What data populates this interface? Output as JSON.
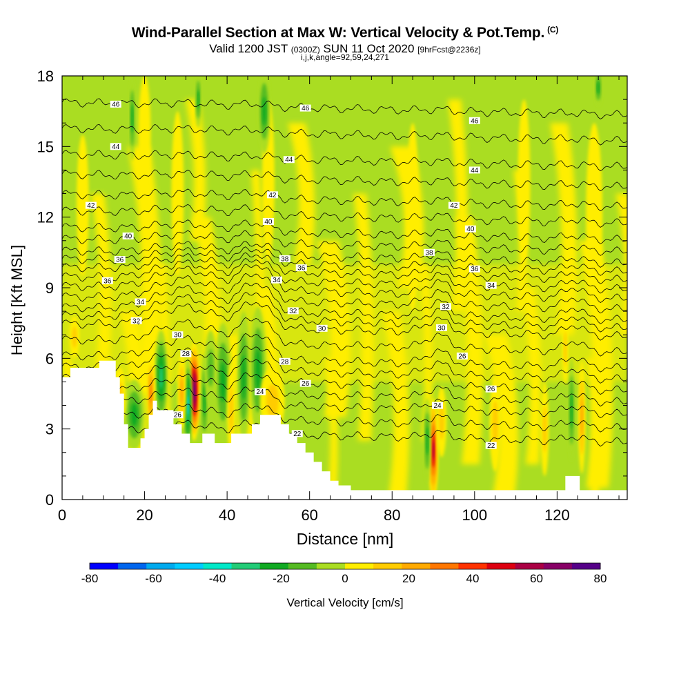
{
  "header": {
    "title": "Wind-Parallel Section at Max W: Vertical Velocity & Pot.Temp.",
    "title_tag": "(C)",
    "subtitle_main_1": "Valid 1200 JST",
    "subtitle_small_1": "(0300Z)",
    "subtitle_main_2": "SUN 11 Oct 2020",
    "subtitle_small_2": "[9hrFcst@2236z]",
    "subtitle2": "i,j,k,angle=92,59,24,271"
  },
  "chart_data": {
    "type": "heatmap",
    "xlabel": "Distance [nm]",
    "ylabel": "Height [Kft MSL]",
    "xlim": [
      0,
      137
    ],
    "ylim": [
      0,
      18
    ],
    "xticks": [
      0,
      20,
      40,
      60,
      80,
      100,
      120
    ],
    "yticks": [
      0,
      3,
      6,
      9,
      12,
      15,
      18
    ],
    "colorbar": {
      "label": "Vertical Velocity [cm/s]",
      "range": [
        -80,
        80
      ],
      "tick_labels": [
        "-80",
        "-60",
        "-40",
        "-20",
        "0",
        "20",
        "40",
        "60",
        "80"
      ],
      "colors": [
        "#0000ff",
        "#0066ee",
        "#00aaee",
        "#00ccff",
        "#00e8c8",
        "#22cc77",
        "#11aa22",
        "#55bb22",
        "#aadd22",
        "#ffee00",
        "#ffcc00",
        "#ffaa00",
        "#ff7700",
        "#ff3300",
        "#dd0011",
        "#aa0044",
        "#880066",
        "#550088"
      ]
    },
    "background_colors": {
      "light_updraft": "#ffee00",
      "light_downdraft": "#aadd22"
    },
    "terrain": [
      [
        0,
        5.2
      ],
      [
        2,
        5.6
      ],
      [
        7,
        5.6
      ],
      [
        9,
        5.9
      ],
      [
        12,
        5.9
      ],
      [
        13,
        5.2
      ],
      [
        14,
        4.5
      ],
      [
        15,
        3.2
      ],
      [
        16,
        2.2
      ],
      [
        18,
        2.2
      ],
      [
        19,
        2.6
      ],
      [
        20,
        3.0
      ],
      [
        21,
        3.6
      ],
      [
        22,
        4.2
      ],
      [
        23,
        3.8
      ],
      [
        25,
        3.8
      ],
      [
        27,
        3.2
      ],
      [
        29,
        2.8
      ],
      [
        30,
        2.8
      ],
      [
        31,
        2.4
      ],
      [
        33,
        2.4
      ],
      [
        34,
        2.8
      ],
      [
        36,
        2.8
      ],
      [
        37,
        2.4
      ],
      [
        40,
        2.4
      ],
      [
        41,
        2.8
      ],
      [
        44,
        2.8
      ],
      [
        46,
        3.2
      ],
      [
        48,
        3.6
      ],
      [
        51,
        3.6
      ],
      [
        53,
        3.2
      ],
      [
        55,
        2.8
      ],
      [
        57,
        2.4
      ],
      [
        59,
        2.0
      ],
      [
        61,
        1.6
      ],
      [
        63,
        1.2
      ],
      [
        65,
        0.8
      ],
      [
        67,
        0.6
      ],
      [
        70,
        0.4
      ],
      [
        75,
        0.4
      ],
      [
        80,
        0.4
      ],
      [
        90,
        0.4
      ],
      [
        100,
        0.4
      ],
      [
        120,
        0.4
      ],
      [
        121,
        0.4
      ],
      [
        122,
        1.0
      ],
      [
        125,
        1.0
      ],
      [
        125.5,
        0.4
      ],
      [
        137,
        0.4
      ]
    ],
    "velocity_cells": [
      {
        "x": 32,
        "y": 4.6,
        "rx": 1.4,
        "ry": 2.1,
        "w": 75
      },
      {
        "x": 30.5,
        "y": 4.0,
        "rx": 1.0,
        "ry": 2.0,
        "w": -45
      },
      {
        "x": 34.5,
        "y": 4.2,
        "rx": 0.9,
        "ry": 2.0,
        "w": -30
      },
      {
        "x": 29,
        "y": 4.6,
        "rx": 1.0,
        "ry": 1.6,
        "w": 25
      },
      {
        "x": 24,
        "y": 5.2,
        "rx": 1.6,
        "ry": 2.0,
        "w": -35
      },
      {
        "x": 21.5,
        "y": 4.5,
        "rx": 1.0,
        "ry": 1.6,
        "w": 35
      },
      {
        "x": 17.5,
        "y": 3.6,
        "rx": 2.5,
        "ry": 1.5,
        "w": -25
      },
      {
        "x": 14,
        "y": 4.4,
        "rx": 1.5,
        "ry": 1.2,
        "w": 15
      },
      {
        "x": 39,
        "y": 5.0,
        "rx": 2.0,
        "ry": 2.5,
        "w": -25
      },
      {
        "x": 41,
        "y": 3.8,
        "rx": 1.0,
        "ry": 2.0,
        "w": 15
      },
      {
        "x": 44,
        "y": 5.2,
        "rx": 1.6,
        "ry": 2.8,
        "w": -22
      },
      {
        "x": 47.5,
        "y": 5.5,
        "rx": 2.0,
        "ry": 2.7,
        "w": -28
      },
      {
        "x": 51,
        "y": 4.2,
        "rx": 3.0,
        "ry": 1.4,
        "w": 18
      },
      {
        "x": 36,
        "y": 5.6,
        "rx": 1.5,
        "ry": 1.6,
        "w": -20
      },
      {
        "x": 90,
        "y": 2.1,
        "rx": 1.2,
        "ry": 2.2,
        "w": 55
      },
      {
        "x": 88.5,
        "y": 2.5,
        "rx": 0.9,
        "ry": 1.8,
        "w": -22
      },
      {
        "x": 92,
        "y": 3.3,
        "rx": 1.2,
        "ry": 1.5,
        "w": 15
      },
      {
        "x": 123.5,
        "y": 3.8,
        "rx": 0.9,
        "ry": 2.2,
        "w": -30
      },
      {
        "x": 126,
        "y": 3.5,
        "rx": 0.9,
        "ry": 2.4,
        "w": 28
      },
      {
        "x": 122,
        "y": 6.4,
        "rx": 0.7,
        "ry": 1.5,
        "w": 18
      },
      {
        "x": 105,
        "y": 3.2,
        "rx": 1.4,
        "ry": 2.0,
        "w": 15
      },
      {
        "x": 117,
        "y": 3.0,
        "rx": 1.0,
        "ry": 2.0,
        "w": 15
      },
      {
        "x": 3,
        "y": 6.9,
        "rx": 1.2,
        "ry": 0.9,
        "w": 15
      },
      {
        "x": 5,
        "y": 12.5,
        "rx": 1.5,
        "ry": 3.0,
        "w": 10
      },
      {
        "x": 20,
        "y": 15.5,
        "rx": 1.5,
        "ry": 2.5,
        "w": 10
      },
      {
        "x": 28,
        "y": 13.0,
        "rx": 1.5,
        "ry": 3.5,
        "w": 10
      },
      {
        "x": 50,
        "y": 13.5,
        "rx": 1.5,
        "ry": 3.5,
        "w": 10
      },
      {
        "x": 85,
        "y": 12.0,
        "rx": 1.5,
        "ry": 4.0,
        "w": 10
      },
      {
        "x": 112,
        "y": 13.5,
        "rx": 1.5,
        "ry": 3.5,
        "w": 10
      },
      {
        "x": 129,
        "y": 12.0,
        "rx": 2.0,
        "ry": 4.0,
        "w": 10
      },
      {
        "x": 17,
        "y": 16.2,
        "rx": 0.8,
        "ry": 1.8,
        "w": -25
      },
      {
        "x": 33,
        "y": 17.0,
        "rx": 0.8,
        "ry": 1.2,
        "w": -25
      },
      {
        "x": 49,
        "y": 16.5,
        "rx": 1.5,
        "ry": 1.8,
        "w": -30
      },
      {
        "x": 130,
        "y": 17.5,
        "rx": 1.0,
        "ry": 0.8,
        "w": -25
      }
    ],
    "theta_levels": [
      {
        "value": 22,
        "y": 2.7,
        "label_x": 57,
        "bump": 0.4
      },
      {
        "value": 24,
        "y": 3.9,
        "label_x": 48,
        "bump": 0.6
      },
      {
        "value": 26,
        "y": 4.9,
        "label_x": 59,
        "bump": 0.8
      },
      {
        "value": 28,
        "y": 5.85,
        "label_x": 54,
        "bump": 0.9
      },
      {
        "value": 30,
        "y": 7.2,
        "label_x": 63,
        "bump": 0.9
      },
      {
        "value": 32,
        "y": 7.9,
        "label_x": 56,
        "bump": 1.0
      },
      {
        "value": 34,
        "y": 8.8,
        "label_x": 52,
        "bump": 0.9
      },
      {
        "value": 36,
        "y": 9.6,
        "label_x": 58,
        "bump": 0.6
      },
      {
        "value": 38,
        "y": 10.3,
        "label_x": 54,
        "bump": 0.4
      },
      {
        "value": 40,
        "y": 11.3,
        "label_x": 50,
        "bump": 0.3
      },
      {
        "value": 42,
        "y": 12.7,
        "label_x": 51,
        "bump": 0.2
      },
      {
        "value": 44,
        "y": 14.4,
        "label_x": 55,
        "bump": 0.1
      },
      {
        "value": 46,
        "y": 16.6,
        "label_x": 59,
        "bump": 0.1
      }
    ],
    "theta_labels_extra": [
      {
        "text": "46",
        "x": 13,
        "y": 16.8
      },
      {
        "text": "46",
        "x": 100,
        "y": 16.1
      },
      {
        "text": "44",
        "x": 13,
        "y": 15.0
      },
      {
        "text": "44",
        "x": 100,
        "y": 14.0
      },
      {
        "text": "42",
        "x": 7,
        "y": 12.5
      },
      {
        "text": "42",
        "x": 95,
        "y": 12.5
      },
      {
        "text": "40",
        "x": 16,
        "y": 11.2
      },
      {
        "text": "40",
        "x": 99,
        "y": 11.5
      },
      {
        "text": "38",
        "x": 89,
        "y": 10.5
      },
      {
        "text": "36",
        "x": 14,
        "y": 10.2
      },
      {
        "text": "36",
        "x": 100,
        "y": 9.8
      },
      {
        "text": "36",
        "x": 11,
        "y": 9.3
      },
      {
        "text": "34",
        "x": 104,
        "y": 9.1
      },
      {
        "text": "34",
        "x": 19,
        "y": 8.4
      },
      {
        "text": "32",
        "x": 93,
        "y": 8.2
      },
      {
        "text": "32",
        "x": 18,
        "y": 7.6
      },
      {
        "text": "30",
        "x": 28,
        "y": 7.0
      },
      {
        "text": "30",
        "x": 92,
        "y": 7.3
      },
      {
        "text": "28",
        "x": 30,
        "y": 6.2
      },
      {
        "text": "26",
        "x": 97,
        "y": 6.1
      },
      {
        "text": "26",
        "x": 104,
        "y": 4.7
      },
      {
        "text": "26",
        "x": 28,
        "y": 3.6
      },
      {
        "text": "24",
        "x": 91,
        "y": 4.0
      },
      {
        "text": "22",
        "x": 104,
        "y": 2.3
      }
    ]
  }
}
